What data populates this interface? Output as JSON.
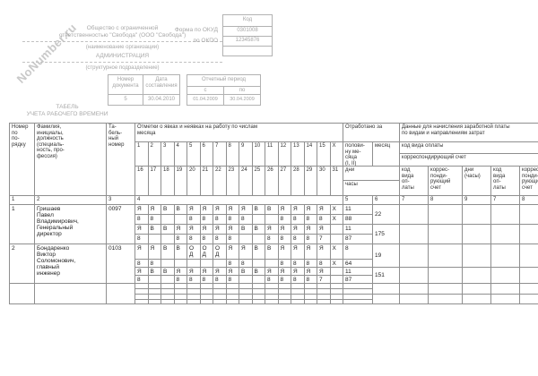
{
  "colors": {
    "header_ink": "#a8a8a8",
    "table_line": "#8f8f8f",
    "table_ink": "#1e1e1e",
    "watermark_gray": "#c9c9c9",
    "paper": "#ffffff"
  },
  "watermark": "NoNumber.ru",
  "form_header": {
    "company_line1": "Общество с ограниченной",
    "company_line2": "ответственностью \"Свобода\" (ООО \"Свобода\")",
    "org_caption": "(наименование организации)",
    "department": "АДМИНИСТРАЦИЯ",
    "dept_caption": "(структурное подразделение)",
    "okud_label": "Форма по ОКУД",
    "okpo_label": "по ОКПО",
    "code_header": "Код",
    "okud_code": "0301008",
    "okpo_code": "12345876",
    "doc_number_label": "Номер\nдокумента",
    "doc_date_label": "Дата\nсоставления",
    "doc_number": "5",
    "doc_date": "30.04.2010",
    "period_title": "Отчетный период",
    "period_from_label": "с",
    "period_to_label": "по",
    "period_from": "01.04.2009",
    "period_to": "30.04.2009",
    "doc_title_line1": "ТАБЕЛЬ",
    "doc_title_line2": "УЧЕТА РАБОЧЕГО ВРЕМЕНИ"
  },
  "timesheet": {
    "headers": {
      "row_number": "Номер\nпо\nпо-\nрядку",
      "employee": "Фамилия,\nинициалы,\nдолжность\n(специаль-\nность, про-\nфессия)",
      "tab_number": "Та-\nбель-\nный\nномер",
      "marks": "Отметки о явках и неявках на работу по числам\nмесяца",
      "days_first_half": [
        "1",
        "2",
        "3",
        "4",
        "5",
        "6",
        "7",
        "8",
        "9",
        "10",
        "11",
        "12",
        "13",
        "14",
        "15",
        "X"
      ],
      "days_second_half": [
        "16",
        "17",
        "18",
        "19",
        "20",
        "21",
        "22",
        "23",
        "24",
        "25",
        "26",
        "27",
        "28",
        "29",
        "30",
        "31"
      ],
      "worked_for": "Отработано за",
      "half_month": "полови-\nну ме-\nсяца\n(I, II)",
      "month": "месяц",
      "days_label": "дни",
      "hours_label": "часы",
      "payroll": "Данные для начисления заработной платы\nпо видам и направлениям затрат",
      "pay_type_code": "код вида оплаты",
      "corr_account": "корреспондирующий счет",
      "pay_cols": [
        "код\nвида\nоп-\nлаты",
        "коррес-\nпонди-\nрующий\nсчет",
        "дни\n(часы)",
        "код\nвида\nоп-\nлаты",
        "коррес-\nпонди-\nрующий\nсчет"
      ],
      "column_numbers": [
        "1",
        "2",
        "3",
        "4",
        "5",
        "6",
        "7",
        "8",
        "9",
        "7",
        "8"
      ]
    },
    "employees": [
      {
        "num": "1",
        "name": "Гришаев\nПавел\nВладимирович,\nГенеральный\nдиректор",
        "tab_num": "0097",
        "marks1": [
          "Я",
          "Я",
          "В",
          "В",
          "Я",
          "Я",
          "Я",
          "Я",
          "Я",
          "В",
          "В",
          "Я",
          "Я",
          "Я",
          "Я",
          "X"
        ],
        "hours1": [
          "8",
          "8",
          "",
          "",
          "8",
          "8",
          "8",
          "8",
          "8",
          "",
          "",
          "8",
          "8",
          "8",
          "8",
          "X"
        ],
        "marks2": [
          "Я",
          "В",
          "В",
          "Я",
          "Я",
          "Я",
          "Я",
          "Я",
          "В",
          "В",
          "Я",
          "Я",
          "Я",
          "Я",
          "Я",
          ""
        ],
        "hours2": [
          "8",
          "",
          "",
          "8",
          "8",
          "8",
          "8",
          "8",
          "",
          "",
          "8",
          "8",
          "8",
          "8",
          "7",
          ""
        ],
        "half1_days": "11",
        "half1_hours": "88",
        "half2_days": "11",
        "half2_hours": "87",
        "month_days": "22",
        "month_hours": "175"
      },
      {
        "num": "2",
        "name": "Бондаренко\nВиктор\nСоломонович,\nглавный\nинженер",
        "tab_num": "0103",
        "marks1": [
          "Я",
          "Я",
          "В",
          "В",
          "О\nД",
          "О\nД",
          "О\nД",
          "Я",
          "Я",
          "В",
          "В",
          "Я",
          "Я",
          "Я",
          "Я",
          "X"
        ],
        "hours1": [
          "8",
          "8",
          "",
          "",
          "",
          "",
          "",
          "8",
          "8",
          "",
          "",
          "8",
          "8",
          "8",
          "8",
          "X"
        ],
        "marks2": [
          "Я",
          "В",
          "В",
          "Я",
          "Я",
          "Я",
          "Я",
          "Я",
          "В",
          "В",
          "Я",
          "Я",
          "Я",
          "Я",
          "Я",
          ""
        ],
        "hours2": [
          "8",
          "",
          "",
          "8",
          "8",
          "8",
          "8",
          "8",
          "",
          "",
          "8",
          "8",
          "8",
          "8",
          "7",
          ""
        ],
        "half1_days": "8",
        "half1_hours": "64",
        "half2_days": "11",
        "half2_hours": "87",
        "month_days": "19",
        "month_hours": "151"
      }
    ]
  }
}
